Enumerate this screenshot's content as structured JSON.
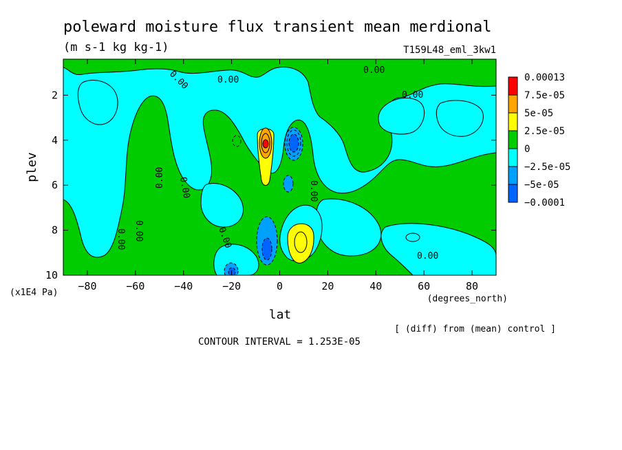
{
  "chart_data": {
    "type": "heatmap",
    "title": "poleward moisture flux transient mean merdional",
    "units": "(m s-1 kg kg-1)",
    "run_label": "T159L48_eml_3kw1",
    "xlabel": "lat",
    "x_units": "(degrees_north)",
    "ylabel": "plev",
    "y_units": "(x1E4 Pa)",
    "xlim": [
      -90,
      90
    ],
    "ylim": [
      10,
      0.4
    ],
    "x_ticks": [
      -80,
      -60,
      -40,
      -20,
      0,
      20,
      40,
      60,
      80
    ],
    "y_ticks": [
      2,
      4,
      6,
      8,
      10
    ],
    "contour_interval": "CONTOUR INTERVAL = 1.253E-05",
    "diff_note": "[ (diff) from (mean) control ]",
    "contour_label": "0.00",
    "legend": {
      "placement": "right",
      "labels": [
        "0.00013",
        "7.5e-05",
        "5e-05",
        "2.5e-05",
        "0",
        "−2.5e-05",
        "−5e-05",
        "−0.0001"
      ],
      "colors": [
        "#ff0000",
        "#ffa500",
        "#ffff00",
        "#00cc00",
        "#00ffff",
        "#00a0ff",
        "#0064ff"
      ],
      "levels": [
        0.00013,
        7.5e-05,
        5e-05,
        2.5e-05,
        0,
        -2.5e-05,
        -5e-05,
        -0.0001
      ]
    },
    "features": [
      {
        "lat": -6,
        "plev": 4.0,
        "value": 0.00013
      },
      {
        "lat": -6,
        "plev": 4.4,
        "value": 7.5e-05
      },
      {
        "lat": 7,
        "plev": 8.8,
        "value": 5e-05
      },
      {
        "lat": 6,
        "plev": 4.0,
        "value": -0.0001
      },
      {
        "lat": -5,
        "plev": 8.7,
        "value": -5e-05
      },
      {
        "lat": -18,
        "plev": 9.7,
        "value": -5e-05
      },
      {
        "lat": 4,
        "plev": 5.8,
        "value": -5e-05
      },
      {
        "lat": 28,
        "plev": 3.0,
        "value": -2.5e-05
      }
    ]
  }
}
